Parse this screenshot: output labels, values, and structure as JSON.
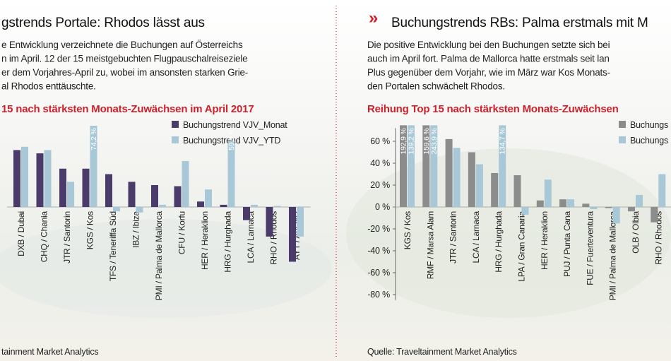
{
  "panels": [
    {
      "title": "gstrends Portale: Rhodos lässt aus",
      "text": [
        "e Entwicklung verzeichnete die Buchungen auf Österreichs",
        "n im April. 12 der 15 meistgebuchten Flugpauschalreiseziele",
        "er dem Vorjahres-April zu, wobei im ansonsten starken Grie-",
        "al Rhodos enttäuschte."
      ],
      "source": "tainment Market Analytics"
    },
    {
      "title": "Buchungstrends RBs: Palma erstmals mit M",
      "text": [
        "Die positive Entwicklung bei den Buchungen setzte sich bei",
        "auch im April fort. Palma de Mallorca hatte erstmals seit lan",
        "Plus gegenüber dem Vorjahr, wie im März war Kos Monats-",
        "den Portalen schwächelt Rhodos."
      ],
      "source": "Quelle: Traveltainment Market Analytics"
    }
  ],
  "chart_data": [
    {
      "type": "bar",
      "title": "15 nach stärksten Monats-Zuwächsen im April 2017",
      "categories": [
        "DXB / Dubai",
        "CHQ / Chania",
        "JTR / Santorin",
        "KGS / Kos",
        "TFS / Teneriffa Süd",
        "IBZ / Ibiza",
        "PMI / Palma de Mallorca",
        "CFU / Korfu",
        "HER / Heraklion",
        "HRG / Hurghada",
        "LCA / Larnaca",
        "RHO / Rhodos",
        "AYT / Antalya"
      ],
      "series": [
        {
          "name": "Buchungstrend VJV_Monat",
          "color": "#4b3b6b",
          "values": [
            52,
            49,
            35,
            35,
            30,
            23,
            20,
            19,
            5,
            2,
            -12,
            -27,
            -50
          ]
        },
        {
          "name": "Buchungstrend VJV_YTD",
          "color": "#a8c8d8",
          "values": [
            55,
            52,
            23,
            74.2,
            -4,
            -5,
            2,
            42,
            16,
            59.9,
            2,
            1,
            -27
          ],
          "value_labels": [
            null,
            null,
            null,
            "74,2 %",
            null,
            null,
            null,
            null,
            null,
            "59,9 %",
            null,
            null,
            null
          ]
        }
      ],
      "ylim": [
        -85,
        72
      ]
    },
    {
      "type": "bar",
      "title": "Reihung Top 15 nach stärksten Monats-Zuwächsen",
      "categories": [
        "KGS / Kos",
        "RMF / Marsa Alam",
        "JTR / Santorin",
        "LCA / Larnaca",
        "HRG / Hurghada",
        "LPA / Gran Canaria",
        "HER / Heraklion",
        "PUJ / Punta Cana",
        "FUE / Fuerteventura",
        "PMI / Palma de Mallorca",
        "OLB / Olbia",
        "RHO / Rhodos"
      ],
      "series": [
        {
          "name": "Buchungs",
          "color": "#8c8c8c",
          "values": [
            192.9,
            159.6,
            62,
            50,
            31,
            29,
            6,
            7,
            3,
            -1,
            -4,
            -14
          ],
          "value_labels": [
            "192,9 %",
            "159,6 %",
            null,
            null,
            null,
            null,
            null,
            null,
            null,
            null,
            null,
            null
          ]
        },
        {
          "name": "Buchungs",
          "color": "#a8c8d8",
          "values": [
            139.2,
            243.9,
            54,
            39,
            134.7,
            -7,
            25,
            7,
            -2,
            -15,
            11,
            30
          ],
          "value_labels": [
            "139,2 %",
            "243,9 %",
            null,
            null,
            "134,7 %",
            null,
            null,
            null,
            null,
            null,
            null,
            null
          ]
        }
      ],
      "ylim": [
        -85,
        72
      ],
      "yticks": [
        {
          "value": 60,
          "label": "60 %"
        },
        {
          "value": 40,
          "label": "40 %"
        },
        {
          "value": 20,
          "label": "20 %"
        },
        {
          "value": 0,
          "label": "0 %"
        },
        {
          "value": -20,
          "label": "-20 %"
        },
        {
          "value": -40,
          "label": "-40 %"
        },
        {
          "value": -60,
          "label": "-60 %"
        },
        {
          "value": -80,
          "label": "-80 %"
        }
      ]
    }
  ]
}
